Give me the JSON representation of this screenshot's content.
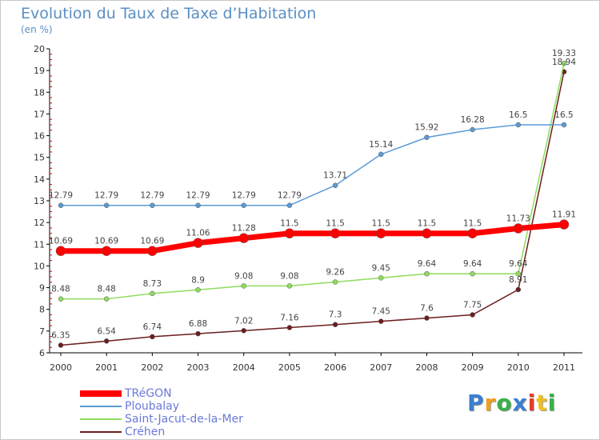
{
  "title": "Evolution du Taux de Taxe d’Habitation",
  "subtitle": "(en %)",
  "colors": {
    "TRéGON": "#ff0000",
    "Ploubalay": "#5b9bd5",
    "Saint-Jacut-de-la-Mer": "#8fdc5c",
    "Créhen": "#6b1e1e"
  },
  "logo": {
    "letters": [
      "P",
      "r",
      "o",
      "x",
      "i",
      "t",
      "i"
    ],
    "colors": [
      "#3a7fd0",
      "#f0a020",
      "#3ab04a",
      "#3a7fd0",
      "#e83a2a",
      "#f0c020",
      "#3ab04a"
    ]
  },
  "chart_data": {
    "type": "line",
    "title": "Evolution du Taux de Taxe d’Habitation",
    "subtitle": "(en %)",
    "x": [
      "2000",
      "2001",
      "2002",
      "2003",
      "2004",
      "2005",
      "2006",
      "2007",
      "2008",
      "2009",
      "2010",
      "2011"
    ],
    "ylim": [
      6,
      20
    ],
    "yticks": [
      6,
      7,
      8,
      9,
      10,
      11,
      12,
      13,
      14,
      15,
      16,
      17,
      18,
      19,
      20
    ],
    "grid": false,
    "legend_position": "bottom-left",
    "series": [
      {
        "name": "TRéGON",
        "values": [
          10.69,
          10.69,
          10.69,
          11.06,
          11.28,
          11.5,
          11.5,
          11.5,
          11.5,
          11.5,
          11.73,
          11.91
        ],
        "labels": [
          "10.69",
          "10.69",
          "10.69",
          "11.06",
          "11.28",
          "11.5",
          "11.5",
          "11.5",
          "11.5",
          "11.5",
          "11.73",
          "11.91"
        ]
      },
      {
        "name": "Ploubalay",
        "values": [
          12.79,
          12.79,
          12.79,
          12.79,
          12.79,
          12.79,
          13.71,
          15.14,
          15.92,
          16.28,
          16.5,
          16.5
        ],
        "labels": [
          "12.79",
          "12.79",
          "12.79",
          "12.79",
          "12.79",
          "12.79",
          "13.71",
          "15.14",
          "15.92",
          "16.28",
          "16.5",
          "16.5"
        ]
      },
      {
        "name": "Saint-Jacut-de-la-Mer",
        "values": [
          8.48,
          8.48,
          8.73,
          8.9,
          9.08,
          9.08,
          9.26,
          9.45,
          9.64,
          9.64,
          9.64,
          19.33
        ],
        "labels": [
          "8.48",
          "8.48",
          "8.73",
          "8.9",
          "9.08",
          "9.08",
          "9.26",
          "9.45",
          "9.64",
          "9.64",
          "9.64",
          "19.33"
        ]
      },
      {
        "name": "Créhen",
        "values": [
          6.35,
          6.54,
          6.74,
          6.88,
          7.02,
          7.16,
          7.3,
          7.45,
          7.6,
          7.75,
          8.91,
          18.94
        ],
        "labels": [
          "6.35",
          "6.54",
          "6.74",
          "6.88",
          "7.02",
          "7.16",
          "7.3",
          "7.45",
          "7.6",
          "7.75",
          "8.91",
          "18.94"
        ]
      }
    ]
  }
}
